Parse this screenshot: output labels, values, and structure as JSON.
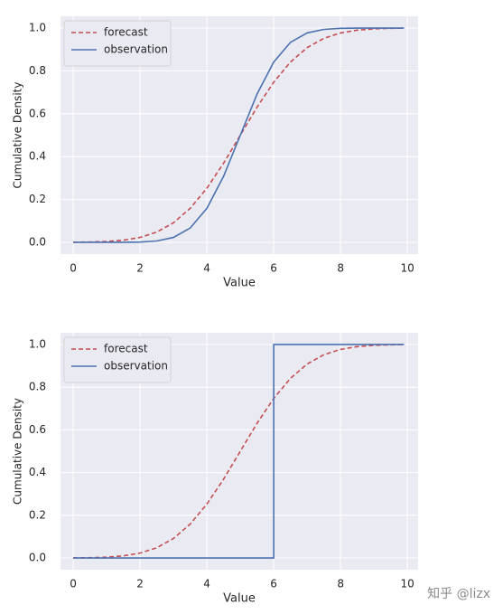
{
  "chart_data": [
    {
      "type": "line",
      "xlabel": "Value",
      "ylabel": "Cumulative Density",
      "x": [
        0,
        0.5,
        1,
        1.5,
        2,
        2.5,
        3,
        3.5,
        4,
        4.5,
        5,
        5.5,
        6,
        6.5,
        7,
        7.5,
        8,
        8.5,
        9,
        9.5,
        9.9
      ],
      "series": [
        {
          "name": "forecast",
          "color": "#c44e52",
          "linestyle": "dashed",
          "values": [
            0.0004,
            0.0013,
            0.0038,
            0.0098,
            0.0228,
            0.0478,
            0.0912,
            0.1587,
            0.2525,
            0.3694,
            0.5,
            0.6306,
            0.7475,
            0.8413,
            0.9088,
            0.9522,
            0.9772,
            0.9902,
            0.9962,
            0.9987,
            0.9995
          ]
        },
        {
          "name": "observation",
          "color": "#4c72b0",
          "linestyle": "solid",
          "values": [
            0,
            0,
            0,
            0.0002,
            0.0013,
            0.0062,
            0.0228,
            0.0668,
            0.1587,
            0.3085,
            0.5,
            0.6915,
            0.8413,
            0.9332,
            0.9772,
            0.9938,
            0.9987,
            0.9998,
            1,
            1,
            1
          ]
        }
      ],
      "xlim": [
        -0.38,
        10.32
      ],
      "ylim": [
        -0.055,
        1.055
      ],
      "xticks": [
        0,
        2,
        4,
        6,
        8,
        10
      ],
      "yticks": [
        {
          "value": 0,
          "label": "0.0"
        },
        0.2,
        0.4,
        0.6,
        0.8,
        {
          "value": 1,
          "label": "1.0"
        }
      ],
      "grid": true,
      "legend": "upper left"
    },
    {
      "type": "line",
      "xlabel": "Value",
      "ylabel": "Cumulative Density",
      "x": [
        0,
        0.5,
        1,
        1.5,
        2,
        2.5,
        3,
        3.5,
        4,
        4.5,
        5,
        5.5,
        6,
        6.5,
        7,
        7.5,
        8,
        8.5,
        9,
        9.5,
        9.9
      ],
      "series": [
        {
          "name": "forecast",
          "color": "#c44e52",
          "linestyle": "dashed",
          "values": [
            0.0004,
            0.0013,
            0.0038,
            0.0098,
            0.0228,
            0.0478,
            0.0912,
            0.1587,
            0.2525,
            0.3694,
            0.5,
            0.6306,
            0.7475,
            0.8413,
            0.9088,
            0.9522,
            0.9772,
            0.9902,
            0.9962,
            0.9987,
            0.9995
          ]
        },
        {
          "name": "observation",
          "color": "#4c72b0",
          "linestyle": "solid",
          "x": [
            0,
            6,
            6,
            9.9
          ],
          "values": [
            0,
            0,
            1,
            1
          ]
        }
      ],
      "xlim": [
        -0.38,
        10.32
      ],
      "ylim": [
        -0.055,
        1.055
      ],
      "xticks": [
        0,
        2,
        4,
        6,
        8,
        10
      ],
      "yticks": [
        {
          "value": 0,
          "label": "0.0"
        },
        0.2,
        0.4,
        0.6,
        0.8,
        {
          "value": 1,
          "label": "1.0"
        }
      ],
      "grid": true,
      "legend": "upper left"
    }
  ],
  "watermark": "知乎 @lizx"
}
